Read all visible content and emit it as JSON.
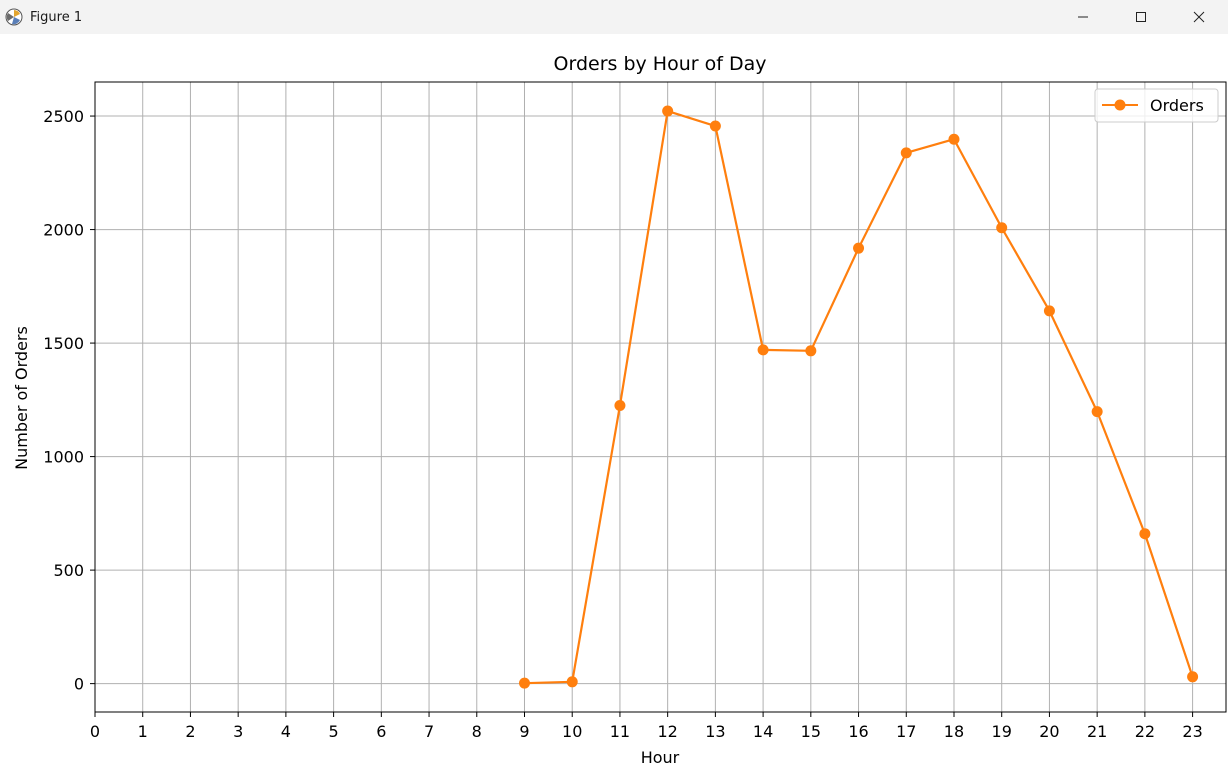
{
  "window": {
    "title": "Figure 1",
    "icons": {
      "app": "matplotlib-figure-icon",
      "minimize": "minimize-icon",
      "maximize": "maximize-icon",
      "close": "close-icon"
    }
  },
  "chart_data": {
    "type": "line",
    "title": "Orders by Hour of Day",
    "xlabel": "Hour",
    "ylabel": "Number of Orders",
    "xlim": [
      0,
      23.7
    ],
    "ylim": [
      -125,
      2650
    ],
    "xticks": [
      0,
      1,
      2,
      3,
      4,
      5,
      6,
      7,
      8,
      9,
      10,
      11,
      12,
      13,
      14,
      15,
      16,
      17,
      18,
      19,
      20,
      21,
      22,
      23
    ],
    "yticks": [
      0,
      500,
      1000,
      1500,
      2000,
      2500
    ],
    "grid": true,
    "legend_position": "upper right",
    "series": [
      {
        "name": "Orders",
        "color": "#ff7f0e",
        "marker": "circle",
        "x": [
          9,
          10,
          11,
          12,
          13,
          14,
          15,
          16,
          17,
          18,
          19,
          20,
          21,
          22,
          23
        ],
        "y": [
          2,
          8,
          1225,
          2522,
          2456,
          1470,
          1466,
          1918,
          2338,
          2398,
          2008,
          1642,
          1198,
          660,
          30
        ]
      }
    ]
  }
}
